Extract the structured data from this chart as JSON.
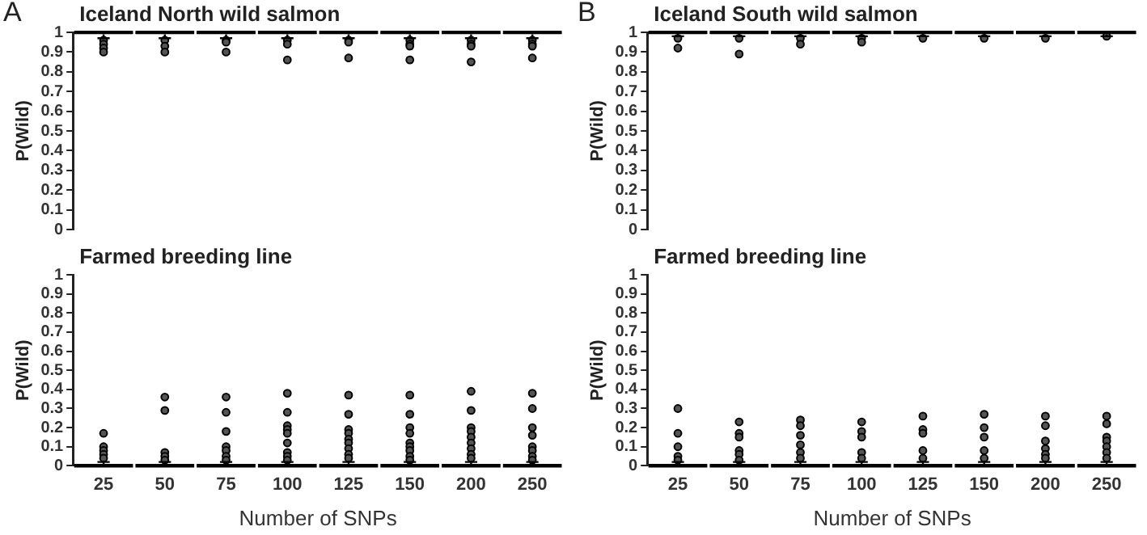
{
  "chart_data": [
    {
      "type": "box",
      "title": "Iceland North wild salmon",
      "ylabel": "P(Wild)",
      "annotations": [
        "A"
      ],
      "color": "#000000",
      "categories": [
        "25",
        "50",
        "75",
        "100",
        "125",
        "150",
        "200",
        "250"
      ],
      "ylim": [
        0,
        1
      ],
      "yticks": [
        0,
        0.1,
        0.2,
        0.3,
        0.4,
        0.5,
        0.6,
        0.7,
        0.8,
        0.9,
        1
      ],
      "tick_labels": "y",
      "grid": false,
      "boxes": [
        {
          "low": 0.97,
          "q1": 0.99,
          "median": 1,
          "q3": 1,
          "high": 1,
          "outliers": [
            0.96,
            0.94,
            0.92,
            0.9
          ]
        },
        {
          "low": 0.97,
          "q1": 0.99,
          "median": 1,
          "q3": 1,
          "high": 1,
          "outliers": [
            0.96,
            0.93,
            0.9
          ]
        },
        {
          "low": 0.97,
          "q1": 0.99,
          "median": 1,
          "q3": 1,
          "high": 1,
          "outliers": [
            0.96,
            0.95,
            0.9
          ]
        },
        {
          "low": 0.97,
          "q1": 0.99,
          "median": 1,
          "q3": 1,
          "high": 1,
          "outliers": [
            0.96,
            0.94,
            0.86
          ]
        },
        {
          "low": 0.97,
          "q1": 0.99,
          "median": 1,
          "q3": 1,
          "high": 1,
          "outliers": [
            0.96,
            0.95,
            0.87
          ]
        },
        {
          "low": 0.97,
          "q1": 0.99,
          "median": 1,
          "q3": 1,
          "high": 1,
          "outliers": [
            0.96,
            0.94,
            0.93,
            0.86
          ]
        },
        {
          "low": 0.97,
          "q1": 0.99,
          "median": 1,
          "q3": 1,
          "high": 1,
          "outliers": [
            0.96,
            0.94,
            0.93,
            0.85
          ]
        },
        {
          "low": 0.97,
          "q1": 0.99,
          "median": 1,
          "q3": 1,
          "high": 1,
          "outliers": [
            0.96,
            0.94,
            0.93,
            0.87
          ]
        }
      ]
    },
    {
      "type": "box",
      "title": "Iceland South wild salmon",
      "ylabel": "P(Wild)",
      "annotations": [
        "B"
      ],
      "color": "#000000",
      "categories": [
        "25",
        "50",
        "75",
        "100",
        "125",
        "150",
        "200",
        "250"
      ],
      "ylim": [
        0,
        1
      ],
      "yticks": [
        0,
        0.1,
        0.2,
        0.3,
        0.4,
        0.5,
        0.6,
        0.7,
        0.8,
        0.9,
        1
      ],
      "tick_labels": "y",
      "grid": false,
      "boxes": [
        {
          "low": 0.98,
          "q1": 0.99,
          "median": 1,
          "q3": 1,
          "high": 1,
          "outliers": [
            0.97,
            0.92
          ]
        },
        {
          "low": 0.98,
          "q1": 0.99,
          "median": 1,
          "q3": 1,
          "high": 1,
          "outliers": [
            0.97,
            0.89
          ]
        },
        {
          "low": 0.98,
          "q1": 0.99,
          "median": 1,
          "q3": 1,
          "high": 1,
          "outliers": [
            0.97,
            0.94
          ]
        },
        {
          "low": 0.98,
          "q1": 0.99,
          "median": 1,
          "q3": 1,
          "high": 1,
          "outliers": [
            0.97,
            0.95
          ]
        },
        {
          "low": 0.98,
          "q1": 0.99,
          "median": 1,
          "q3": 1,
          "high": 1,
          "outliers": [
            0.97
          ]
        },
        {
          "low": 0.98,
          "q1": 0.99,
          "median": 1,
          "q3": 1,
          "high": 1,
          "outliers": [
            0.97
          ]
        },
        {
          "low": 0.98,
          "q1": 0.99,
          "median": 1,
          "q3": 1,
          "high": 1,
          "outliers": [
            0.97
          ]
        },
        {
          "low": 0.98,
          "q1": 0.99,
          "median": 1,
          "q3": 1,
          "high": 1,
          "outliers": [
            0.98
          ]
        }
      ]
    },
    {
      "type": "box",
      "title": "Farmed breeding line",
      "ylabel": "P(Wild)",
      "xlabel": "Number of SNPs",
      "color": "#000000",
      "categories": [
        "25",
        "50",
        "75",
        "100",
        "125",
        "150",
        "200",
        "250"
      ],
      "ylim": [
        0,
        1
      ],
      "yticks": [
        0,
        0.1,
        0.2,
        0.3,
        0.4,
        0.5,
        0.6,
        0.7,
        0.8,
        0.9,
        1
      ],
      "grid": false,
      "boxes": [
        {
          "low": 0,
          "q1": 0,
          "median": 0,
          "q3": 0.01,
          "high": 0.02,
          "outliers": [
            0.17,
            0.1,
            0.08,
            0.06,
            0.04
          ]
        },
        {
          "low": 0,
          "q1": 0,
          "median": 0,
          "q3": 0.01,
          "high": 0.02,
          "outliers": [
            0.36,
            0.29,
            0.07,
            0.05,
            0.03
          ]
        },
        {
          "low": 0,
          "q1": 0,
          "median": 0,
          "q3": 0.01,
          "high": 0.02,
          "outliers": [
            0.36,
            0.28,
            0.18,
            0.1,
            0.08,
            0.05,
            0.03
          ]
        },
        {
          "low": 0,
          "q1": 0,
          "median": 0,
          "q3": 0.01,
          "high": 0.02,
          "outliers": [
            0.38,
            0.28,
            0.21,
            0.19,
            0.17,
            0.12,
            0.07,
            0.05,
            0.03
          ]
        },
        {
          "low": 0,
          "q1": 0,
          "median": 0,
          "q3": 0.01,
          "high": 0.02,
          "outliers": [
            0.37,
            0.27,
            0.19,
            0.17,
            0.14,
            0.12,
            0.09,
            0.06,
            0.04
          ]
        },
        {
          "low": 0,
          "q1": 0,
          "median": 0,
          "q3": 0.01,
          "high": 0.02,
          "outliers": [
            0.37,
            0.27,
            0.2,
            0.17,
            0.12,
            0.1,
            0.08,
            0.05,
            0.03
          ]
        },
        {
          "low": 0,
          "q1": 0,
          "median": 0,
          "q3": 0.01,
          "high": 0.02,
          "outliers": [
            0.39,
            0.29,
            0.2,
            0.18,
            0.15,
            0.12,
            0.09,
            0.06,
            0.04
          ]
        },
        {
          "low": 0,
          "q1": 0,
          "median": 0,
          "q3": 0.01,
          "high": 0.02,
          "outliers": [
            0.38,
            0.3,
            0.2,
            0.16,
            0.1,
            0.08,
            0.05,
            0.03
          ]
        }
      ]
    },
    {
      "type": "box",
      "title": "Farmed breeding line",
      "ylabel": "P(Wild)",
      "xlabel": "Number of SNPs",
      "color": "#000000",
      "categories": [
        "25",
        "50",
        "75",
        "100",
        "125",
        "150",
        "200",
        "250"
      ],
      "ylim": [
        0,
        1
      ],
      "yticks": [
        0,
        0.1,
        0.2,
        0.3,
        0.4,
        0.5,
        0.6,
        0.7,
        0.8,
        0.9,
        1
      ],
      "grid": false,
      "boxes": [
        {
          "low": 0,
          "q1": 0,
          "median": 0,
          "q3": 0.01,
          "high": 0.02,
          "outliers": [
            0.3,
            0.17,
            0.1,
            0.05,
            0.03
          ]
        },
        {
          "low": 0,
          "q1": 0,
          "median": 0,
          "q3": 0.01,
          "high": 0.02,
          "outliers": [
            0.23,
            0.17,
            0.15,
            0.08,
            0.06,
            0.03
          ]
        },
        {
          "low": 0,
          "q1": 0,
          "median": 0,
          "q3": 0.01,
          "high": 0.02,
          "outliers": [
            0.24,
            0.21,
            0.16,
            0.11,
            0.07,
            0.04
          ]
        },
        {
          "low": 0,
          "q1": 0,
          "median": 0,
          "q3": 0.01,
          "high": 0.02,
          "outliers": [
            0.23,
            0.18,
            0.15,
            0.07,
            0.04
          ]
        },
        {
          "low": 0,
          "q1": 0,
          "median": 0,
          "q3": 0.01,
          "high": 0.02,
          "outliers": [
            0.26,
            0.19,
            0.17,
            0.08,
            0.04
          ]
        },
        {
          "low": 0,
          "q1": 0,
          "median": 0,
          "q3": 0.01,
          "high": 0.02,
          "outliers": [
            0.27,
            0.2,
            0.15,
            0.08,
            0.04
          ]
        },
        {
          "low": 0,
          "q1": 0,
          "median": 0,
          "q3": 0.01,
          "high": 0.02,
          "outliers": [
            0.26,
            0.21,
            0.13,
            0.09,
            0.06,
            0.04
          ]
        },
        {
          "low": 0,
          "q1": 0,
          "median": 0,
          "q3": 0.01,
          "high": 0.02,
          "outliers": [
            0.26,
            0.22,
            0.15,
            0.13,
            0.1,
            0.07,
            0.04
          ]
        }
      ]
    }
  ]
}
